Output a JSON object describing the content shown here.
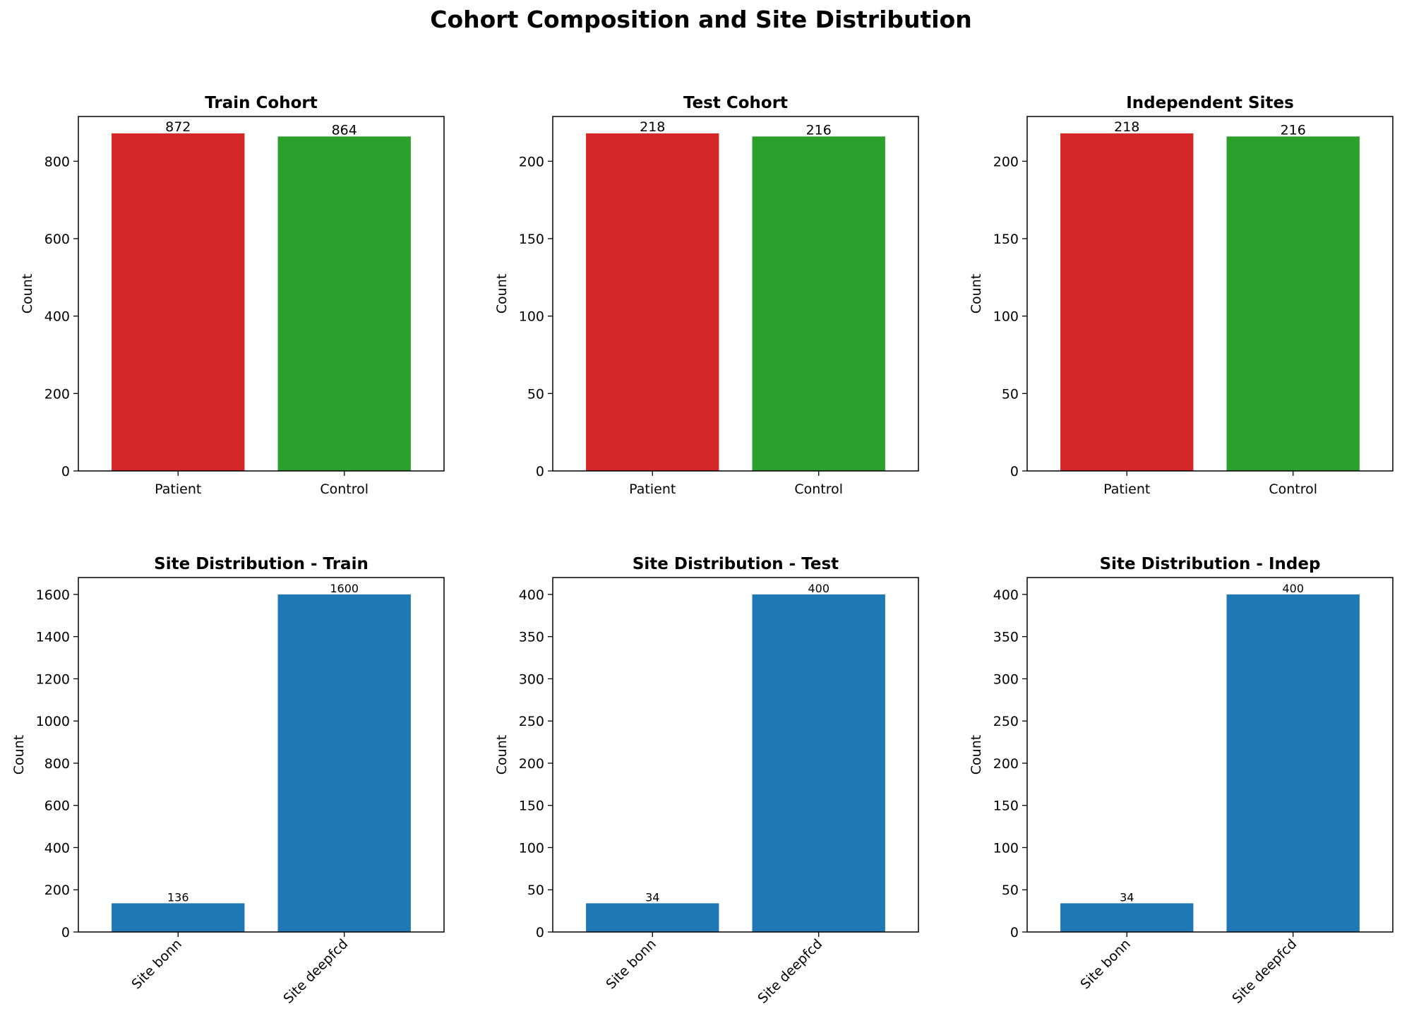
{
  "suptitle": "Cohort Composition and Site Distribution",
  "colors": {
    "patient": "#d62728",
    "control": "#2ca02c",
    "site": "#1f77b4"
  },
  "chart_data": [
    {
      "type": "bar",
      "title": "Train Cohort",
      "xlabel": "",
      "ylabel": "Count",
      "categories": [
        "Patient",
        "Control"
      ],
      "values": [
        872,
        864
      ],
      "ylim": [
        0,
        915.6
      ],
      "yticks": [
        0,
        200,
        400,
        600,
        800
      ],
      "bar_colors": [
        "#d62728",
        "#2ca02c"
      ],
      "tick_rotation": 0,
      "grid": false
    },
    {
      "type": "bar",
      "title": "Test Cohort",
      "xlabel": "",
      "ylabel": "Count",
      "categories": [
        "Patient",
        "Control"
      ],
      "values": [
        218,
        216
      ],
      "ylim": [
        0,
        228.9
      ],
      "yticks": [
        0,
        50,
        100,
        150,
        200
      ],
      "bar_colors": [
        "#d62728",
        "#2ca02c"
      ],
      "tick_rotation": 0,
      "grid": false
    },
    {
      "type": "bar",
      "title": "Independent Sites",
      "xlabel": "",
      "ylabel": "Count",
      "categories": [
        "Patient",
        "Control"
      ],
      "values": [
        218,
        216
      ],
      "ylim": [
        0,
        228.9
      ],
      "yticks": [
        0,
        50,
        100,
        150,
        200
      ],
      "bar_colors": [
        "#d62728",
        "#2ca02c"
      ],
      "tick_rotation": 0,
      "grid": false
    },
    {
      "type": "bar",
      "title": "Site Distribution - Train",
      "xlabel": "",
      "ylabel": "Count",
      "categories": [
        "Site bonn",
        "Site deepfcd"
      ],
      "values": [
        136,
        1600
      ],
      "ylim": [
        0,
        1680
      ],
      "yticks": [
        0,
        200,
        400,
        600,
        800,
        1000,
        1200,
        1400,
        1600
      ],
      "bar_colors": [
        "#1f77b4",
        "#1f77b4"
      ],
      "tick_rotation": 45,
      "grid": false
    },
    {
      "type": "bar",
      "title": "Site Distribution - Test",
      "xlabel": "",
      "ylabel": "Count",
      "categories": [
        "Site bonn",
        "Site deepfcd"
      ],
      "values": [
        34,
        400
      ],
      "ylim": [
        0,
        420
      ],
      "yticks": [
        0,
        50,
        100,
        150,
        200,
        250,
        300,
        350,
        400
      ],
      "bar_colors": [
        "#1f77b4",
        "#1f77b4"
      ],
      "tick_rotation": 45,
      "grid": false
    },
    {
      "type": "bar",
      "title": "Site Distribution - Indep",
      "xlabel": "",
      "ylabel": "Count",
      "categories": [
        "Site bonn",
        "Site deepfcd"
      ],
      "values": [
        34,
        400
      ],
      "ylim": [
        0,
        420
      ],
      "yticks": [
        0,
        50,
        100,
        150,
        200,
        250,
        300,
        350,
        400
      ],
      "bar_colors": [
        "#1f77b4",
        "#1f77b4"
      ],
      "tick_rotation": 45,
      "grid": false
    }
  ]
}
